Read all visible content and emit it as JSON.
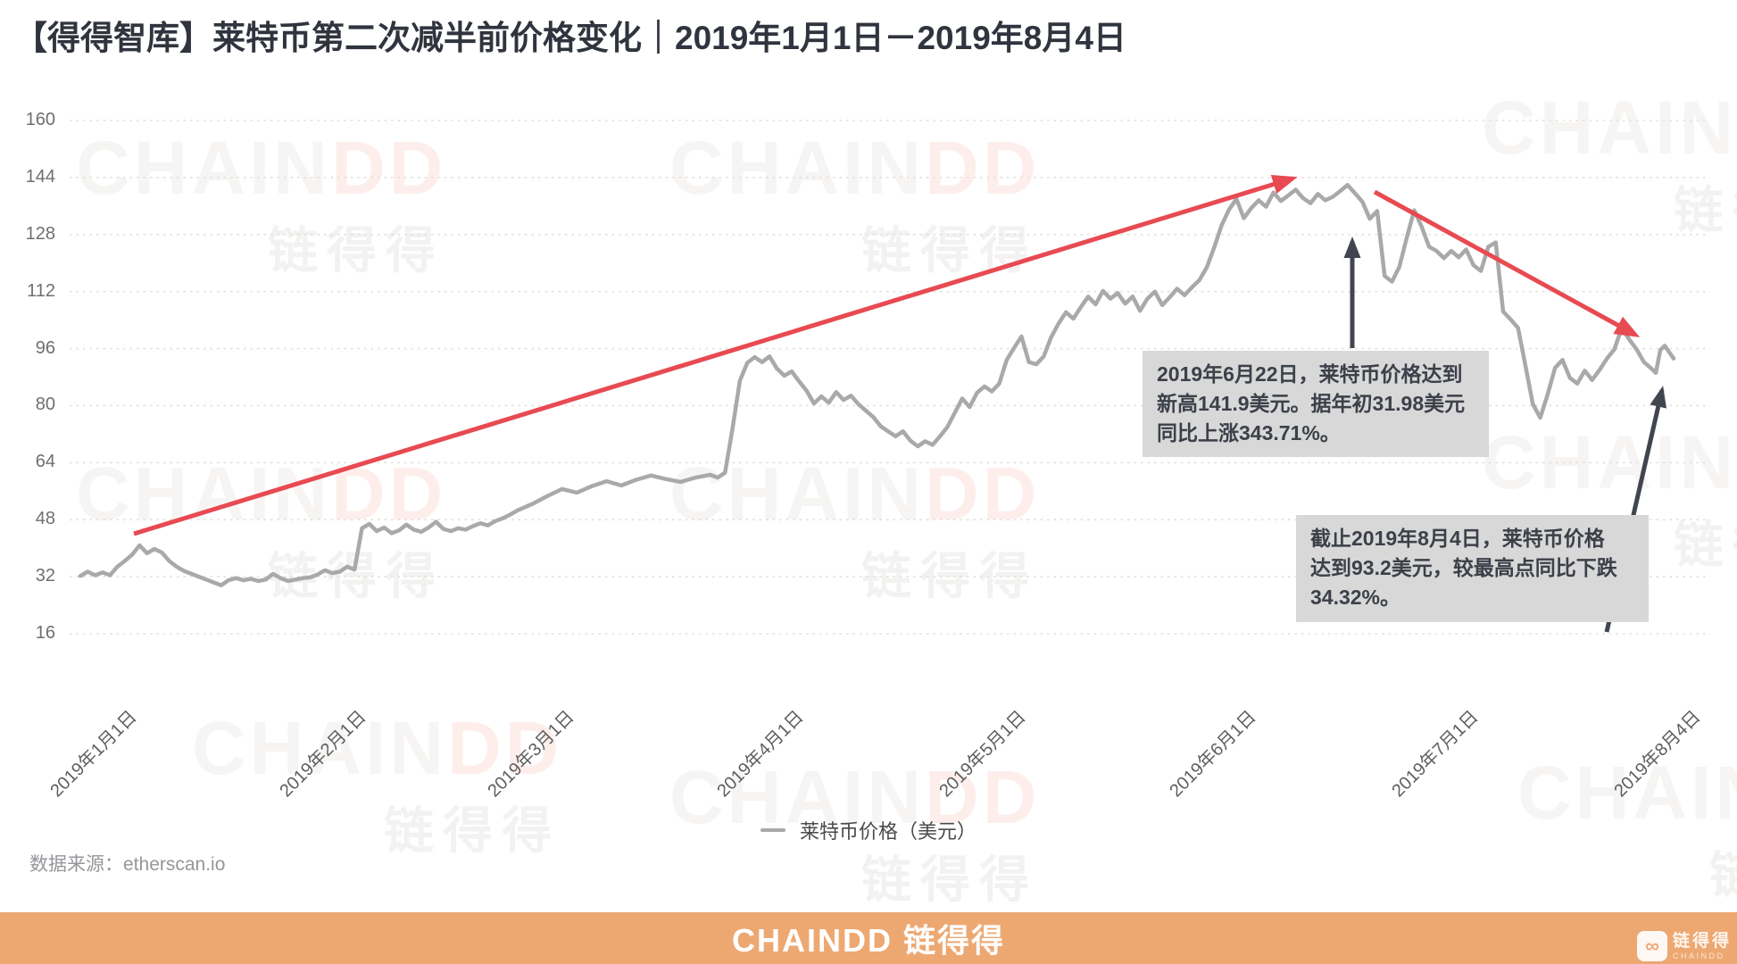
{
  "title": "【得得智库】莱特币第二次减半前价格变化｜2019年1月1日－2019年8月4日",
  "chart_data": {
    "type": "line",
    "title": "莱特币第二次减半前价格变化 2019年1月1日－2019年8月4日",
    "ylabel": "",
    "xlabel": "",
    "ylim": [
      0,
      160
    ],
    "y_ticks": [
      160,
      144,
      128,
      112,
      96,
      80,
      64,
      48,
      32,
      16
    ],
    "x_tick_labels": [
      "2019年1月1日",
      "2019年2月1日",
      "2019年3月1日",
      "2019年4月1日",
      "2019年5月1日",
      "2019年6月1日",
      "2019年7月1日",
      "2019年8月4日"
    ],
    "grid": "dotted horizontal",
    "legend_position": "bottom-center",
    "series": [
      {
        "name": "莱特币价格（美元）",
        "color": "#a9a9a9",
        "x_unit": "day-index 0=2019-01-01 .. 215=2019-08-04",
        "points": [
          [
            0,
            32.2
          ],
          [
            1,
            33.4
          ],
          [
            2,
            32.4
          ],
          [
            3,
            33.2
          ],
          [
            4,
            32.4
          ],
          [
            5,
            34.8
          ],
          [
            6,
            36.4
          ],
          [
            7,
            38.2
          ],
          [
            8,
            40.8
          ],
          [
            9,
            38.6
          ],
          [
            10,
            39.8
          ],
          [
            11,
            38.8
          ],
          [
            12,
            36.4
          ],
          [
            13,
            34.8
          ],
          [
            14,
            33.6
          ],
          [
            15,
            32.8
          ],
          [
            16,
            32.0
          ],
          [
            17,
            31.2
          ],
          [
            18,
            30.4
          ],
          [
            19,
            29.6
          ],
          [
            20,
            31.0
          ],
          [
            21,
            31.6
          ],
          [
            22,
            31.0
          ],
          [
            23,
            31.4
          ],
          [
            24,
            30.8
          ],
          [
            25,
            31.2
          ],
          [
            26,
            32.8
          ],
          [
            27,
            31.6
          ],
          [
            28,
            30.8
          ],
          [
            29,
            31.2
          ],
          [
            30,
            31.6
          ],
          [
            31,
            31.8
          ],
          [
            32,
            32.6
          ],
          [
            33,
            33.8
          ],
          [
            34,
            33.0
          ],
          [
            35,
            33.4
          ],
          [
            36,
            34.8
          ],
          [
            37,
            34.0
          ],
          [
            38,
            45.6
          ],
          [
            39,
            46.8
          ],
          [
            40,
            44.8
          ],
          [
            41,
            45.8
          ],
          [
            42,
            44.2
          ],
          [
            43,
            45.0
          ],
          [
            44,
            46.6
          ],
          [
            45,
            45.2
          ],
          [
            46,
            44.6
          ],
          [
            47,
            45.8
          ],
          [
            48,
            47.4
          ],
          [
            49,
            45.4
          ],
          [
            50,
            44.8
          ],
          [
            51,
            45.6
          ],
          [
            52,
            45.2
          ],
          [
            53,
            46.2
          ],
          [
            54,
            47.0
          ],
          [
            55,
            46.4
          ],
          [
            56,
            47.6
          ],
          [
            57,
            48.4
          ],
          [
            58,
            49.4
          ],
          [
            59,
            50.6
          ],
          [
            61,
            52.4
          ],
          [
            63,
            54.6
          ],
          [
            65,
            56.6
          ],
          [
            67,
            55.6
          ],
          [
            69,
            57.4
          ],
          [
            71,
            58.8
          ],
          [
            73,
            57.6
          ],
          [
            75,
            59.2
          ],
          [
            77,
            60.4
          ],
          [
            79,
            59.4
          ],
          [
            81,
            58.6
          ],
          [
            83,
            59.8
          ],
          [
            85,
            60.6
          ],
          [
            86,
            59.8
          ],
          [
            87,
            61.2
          ],
          [
            88,
            73.5
          ],
          [
            89,
            87.0
          ],
          [
            90,
            92.0
          ],
          [
            91,
            93.6
          ],
          [
            92,
            92.2
          ],
          [
            93,
            93.8
          ],
          [
            94,
            90.4
          ],
          [
            95,
            88.4
          ],
          [
            96,
            89.6
          ],
          [
            97,
            86.8
          ],
          [
            98,
            84.2
          ],
          [
            99,
            80.6
          ],
          [
            100,
            82.6
          ],
          [
            101,
            80.8
          ],
          [
            102,
            83.8
          ],
          [
            103,
            81.6
          ],
          [
            104,
            82.8
          ],
          [
            105,
            80.4
          ],
          [
            106,
            78.6
          ],
          [
            107,
            76.8
          ],
          [
            108,
            74.2
          ],
          [
            109,
            72.8
          ],
          [
            110,
            71.4
          ],
          [
            111,
            72.8
          ],
          [
            112,
            70.2
          ],
          [
            113,
            68.6
          ],
          [
            114,
            70.0
          ],
          [
            115,
            69.0
          ],
          [
            116,
            71.4
          ],
          [
            117,
            74.0
          ],
          [
            118,
            78.0
          ],
          [
            119,
            82.0
          ],
          [
            120,
            79.6
          ],
          [
            121,
            83.6
          ],
          [
            122,
            85.4
          ],
          [
            123,
            84.0
          ],
          [
            124,
            86.2
          ],
          [
            125,
            92.8
          ],
          [
            126,
            96.2
          ],
          [
            127,
            99.4
          ],
          [
            128,
            92.2
          ],
          [
            129,
            91.6
          ],
          [
            130,
            93.8
          ],
          [
            131,
            99.2
          ],
          [
            132,
            103.0
          ],
          [
            133,
            106.2
          ],
          [
            134,
            104.4
          ],
          [
            135,
            107.6
          ],
          [
            136,
            110.6
          ],
          [
            137,
            108.4
          ],
          [
            138,
            112.2
          ],
          [
            139,
            110.0
          ],
          [
            140,
            111.6
          ],
          [
            141,
            108.6
          ],
          [
            142,
            110.6
          ],
          [
            143,
            106.6
          ],
          [
            144,
            110.0
          ],
          [
            145,
            112.0
          ],
          [
            146,
            108.2
          ],
          [
            147,
            110.4
          ],
          [
            148,
            112.8
          ],
          [
            149,
            111.0
          ],
          [
            150,
            113.2
          ],
          [
            151,
            115.2
          ],
          [
            152,
            118.8
          ],
          [
            153,
            124.4
          ],
          [
            154,
            130.6
          ],
          [
            155,
            135.0
          ],
          [
            156,
            138.0
          ],
          [
            157,
            132.6
          ],
          [
            158,
            135.4
          ],
          [
            159,
            137.6
          ],
          [
            160,
            135.8
          ],
          [
            161,
            139.8
          ],
          [
            162,
            137.4
          ],
          [
            163,
            139.0
          ],
          [
            164,
            140.6
          ],
          [
            165,
            138.2
          ],
          [
            166,
            136.8
          ],
          [
            167,
            139.4
          ],
          [
            168,
            137.6
          ],
          [
            169,
            138.6
          ],
          [
            170,
            140.2
          ],
          [
            171,
            141.9
          ],
          [
            172,
            139.6
          ],
          [
            173,
            137.2
          ],
          [
            174,
            132.4
          ],
          [
            175,
            134.6
          ],
          [
            176,
            116.4
          ],
          [
            177,
            114.8
          ],
          [
            178,
            119.0
          ],
          [
            179,
            127.2
          ],
          [
            180,
            134.8
          ],
          [
            181,
            130.2
          ],
          [
            182,
            124.6
          ],
          [
            183,
            123.4
          ],
          [
            184,
            121.4
          ],
          [
            185,
            123.4
          ],
          [
            186,
            121.6
          ],
          [
            187,
            123.8
          ],
          [
            188,
            119.4
          ],
          [
            189,
            117.8
          ],
          [
            190,
            124.6
          ],
          [
            191,
            125.8
          ],
          [
            192,
            106.4
          ],
          [
            193,
            104.2
          ],
          [
            194,
            101.8
          ],
          [
            195,
            91.2
          ],
          [
            196,
            80.4
          ],
          [
            197,
            76.6
          ],
          [
            198,
            83.2
          ],
          [
            199,
            90.6
          ],
          [
            200,
            92.8
          ],
          [
            201,
            87.8
          ],
          [
            202,
            86.2
          ],
          [
            203,
            89.8
          ],
          [
            204,
            87.2
          ],
          [
            205,
            90.0
          ],
          [
            206,
            93.2
          ],
          [
            207,
            95.8
          ],
          [
            208,
            101.8
          ],
          [
            209,
            98.6
          ],
          [
            210,
            95.8
          ],
          [
            211,
            92.2
          ],
          [
            212,
            90.4
          ],
          [
            212.6,
            89.2
          ],
          [
            213.2,
            95.6
          ],
          [
            213.8,
            96.8
          ],
          [
            214.4,
            95.0
          ],
          [
            215,
            93.2
          ]
        ]
      }
    ],
    "annotations": [
      {
        "lines": [
          "2019年6月22日，莱特币价格达到",
          "新高141.9美元。据年初31.98美元",
          "同比上涨343.71%。"
        ]
      },
      {
        "lines": [
          "截止2019年8月4日，莱特币价格",
          "达到93.2美元，较最高点同比下跌",
          "34.32%。"
        ]
      }
    ],
    "key_points": {
      "peak_date": "2019年6月22日",
      "peak_value": 141.9,
      "start_value": 31.98,
      "rise_pct": "343.71%",
      "end_date": "2019年8月4日",
      "end_value": 93.2,
      "drop_pct": "34.32%"
    },
    "colors": {
      "line": "#a9a9a9",
      "trend_arrow": "#e84a52",
      "pointer_arrow": "#41454f",
      "grid": "#e3e0dc",
      "annotation_bg": "#d8d8d8"
    }
  },
  "legend": {
    "label": "莱特币价格（美元）"
  },
  "source": {
    "text": "数据来源：etherscan.io"
  },
  "footer": {
    "brand": "CHAINDD 链得得",
    "accent": "#eda872",
    "logo_icon": "chain-link-icon",
    "logo_glyph": "∞",
    "logo_text_cn": "链得得",
    "logo_text_en": "CHAINDD"
  },
  "watermark": {
    "text_latin": "CHAINDD",
    "text_cn": "链得得"
  }
}
